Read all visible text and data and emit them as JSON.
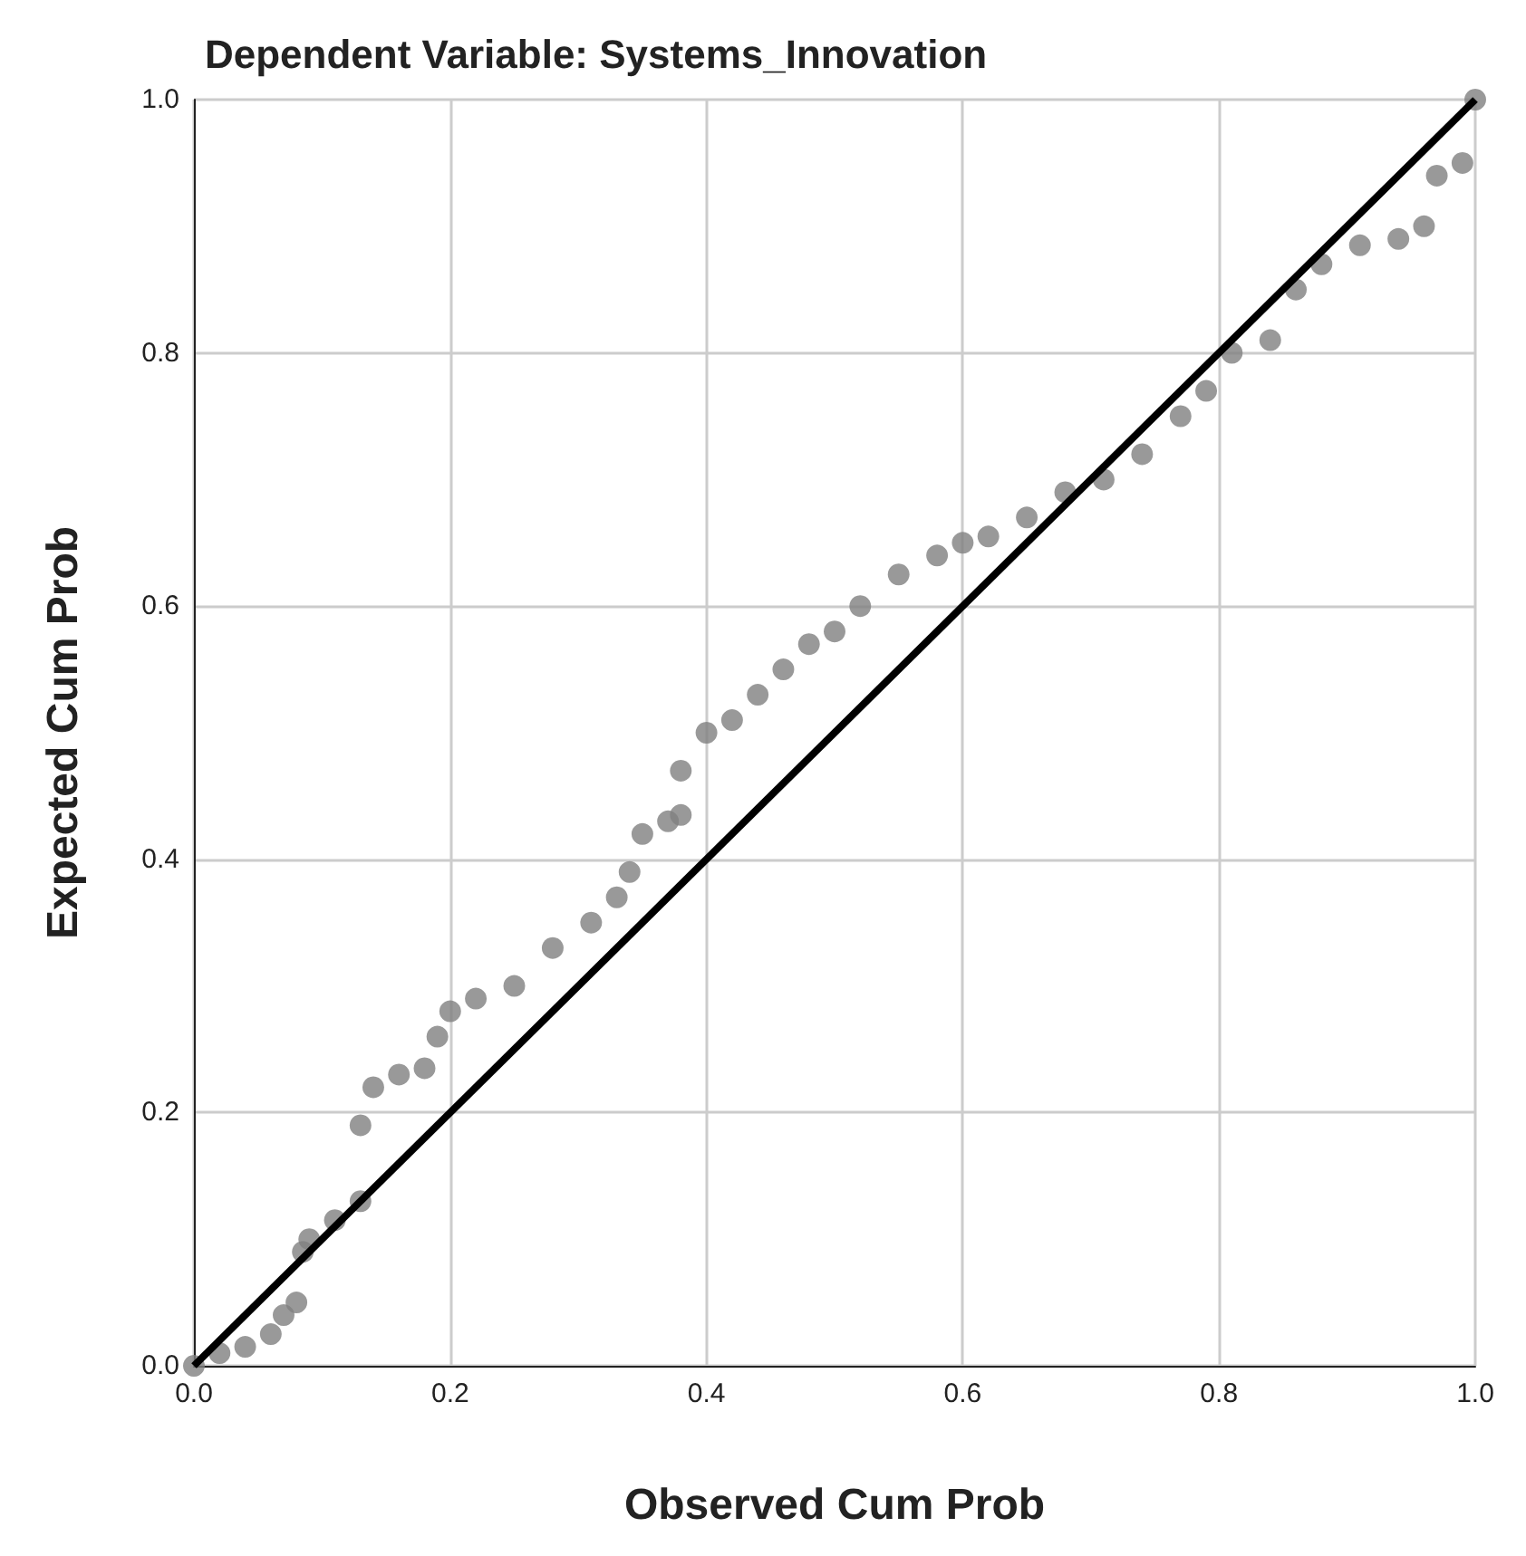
{
  "chart_data": {
    "type": "scatter",
    "title": "Dependent Variable: Systems_Innovation",
    "xlabel": "Observed Cum Prob",
    "ylabel": "Expected Cum Prob",
    "xlim": [
      0,
      1
    ],
    "ylim": [
      0,
      1
    ],
    "xticks": [
      {
        "value": 0,
        "label": "0.0"
      },
      {
        "value": 0.2,
        "label": "0.2"
      },
      {
        "value": 0.4,
        "label": "0.4"
      },
      {
        "value": 0.6,
        "label": "0.6"
      },
      {
        "value": 0.8,
        "label": "0.8"
      },
      {
        "value": 1,
        "label": "1.0"
      }
    ],
    "yticks": [
      {
        "value": 0,
        "label": "0.0"
      },
      {
        "value": 0.2,
        "label": "0.2"
      },
      {
        "value": 0.4,
        "label": "0.4"
      },
      {
        "value": 0.6,
        "label": "0.6"
      },
      {
        "value": 0.8,
        "label": "0.8"
      },
      {
        "value": 1,
        "label": "1.0"
      }
    ],
    "grid": true,
    "series": [
      {
        "color": "#7f7f7f",
        "marker": "circle",
        "x": [
          0.0,
          0.02,
          0.04,
          0.06,
          0.07,
          0.08,
          0.085,
          0.09,
          0.11,
          0.13,
          0.13,
          0.14,
          0.16,
          0.18,
          0.19,
          0.2,
          0.22,
          0.25,
          0.28,
          0.31,
          0.33,
          0.34,
          0.35,
          0.37,
          0.38,
          0.38,
          0.4,
          0.42,
          0.44,
          0.46,
          0.48,
          0.5,
          0.52,
          0.55,
          0.58,
          0.6,
          0.62,
          0.65,
          0.68,
          0.71,
          0.74,
          0.77,
          0.79,
          0.81,
          0.84,
          0.86,
          0.88,
          0.91,
          0.94,
          0.96,
          0.97,
          0.99,
          1.0
        ],
        "values": [
          0.0,
          0.01,
          0.015,
          0.025,
          0.04,
          0.05,
          0.09,
          0.1,
          0.115,
          0.13,
          0.19,
          0.22,
          0.23,
          0.235,
          0.26,
          0.28,
          0.29,
          0.3,
          0.33,
          0.35,
          0.37,
          0.39,
          0.42,
          0.43,
          0.435,
          0.47,
          0.5,
          0.51,
          0.53,
          0.55,
          0.57,
          0.58,
          0.6,
          0.625,
          0.64,
          0.65,
          0.655,
          0.67,
          0.69,
          0.7,
          0.72,
          0.75,
          0.77,
          0.8,
          0.81,
          0.85,
          0.87,
          0.885,
          0.89,
          0.9,
          0.94,
          0.95,
          1.0
        ]
      },
      {
        "type": "line",
        "color": "#000000",
        "marker": "none",
        "line_style": "solid",
        "x": [
          0,
          1
        ],
        "values": [
          0,
          1
        ]
      }
    ]
  }
}
